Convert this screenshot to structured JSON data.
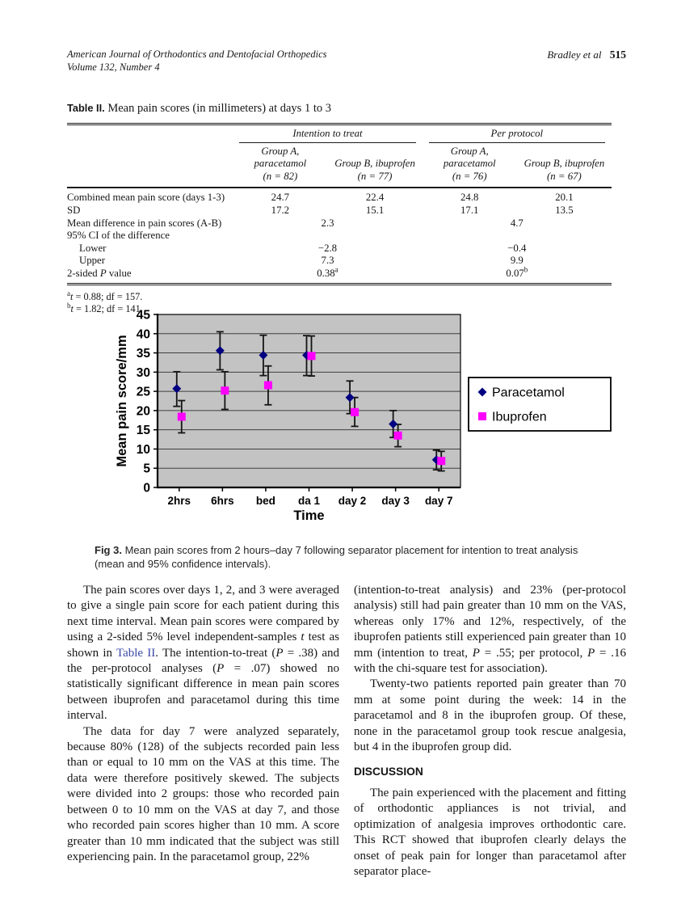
{
  "page_header": {
    "journal": "American Journal of Orthodontics and Dentofacial Orthopedics",
    "volume": "Volume 132, Number 4",
    "running_authors": "Bradley et al",
    "page_number": "515"
  },
  "table": {
    "label": "Table II.",
    "title": "Mean pain scores (in millimeters) at days 1 to 3",
    "group_headers": [
      "Intention to treat",
      "Per protocol"
    ],
    "column_headers": [
      {
        "name": "Group A, paracetamol",
        "n": "(n = 82)"
      },
      {
        "name": "Group B, ibuprofen",
        "n": "(n = 77)"
      },
      {
        "name": "Group A, paracetamol",
        "n": "(n = 76)"
      },
      {
        "name": "Group B, ibuprofen",
        "n": "(n = 67)"
      }
    ],
    "rows": [
      {
        "label": "Combined mean pain score (days 1-3)",
        "span": false,
        "values": [
          "24.7",
          "22.4",
          "24.8",
          "20.1"
        ]
      },
      {
        "label": "SD",
        "span": false,
        "values": [
          "17.2",
          "15.1",
          "17.1",
          "13.5"
        ]
      },
      {
        "label": "Mean difference in pain scores (A-B)",
        "span": true,
        "values": [
          "2.3",
          "4.7"
        ]
      },
      {
        "label": "95% CI of the difference",
        "span": false,
        "values": []
      },
      {
        "label": "Lower",
        "indent": true,
        "span": true,
        "values": [
          "−2.8",
          "−0.4"
        ]
      },
      {
        "label": "Upper",
        "indent": true,
        "span": true,
        "values": [
          "7.3",
          "9.9"
        ]
      },
      {
        "label": "2-sided P value",
        "span": true,
        "values": [
          "0.38",
          "0.07"
        ],
        "sups": [
          "a",
          "b"
        ]
      }
    ],
    "footnotes": [
      {
        "marker": "a",
        "text": "t = 0.88; df = 157."
      },
      {
        "marker": "b",
        "text": "t = 1.82; df = 141."
      }
    ]
  },
  "figure": {
    "label": "Fig 3.",
    "caption": "Mean pain scores from 2 hours–day 7 following separator placement for intention to treat analysis (mean and 95% confidence intervals)."
  },
  "chart_data": {
    "type": "scatter",
    "title": "",
    "xlabel": "Time",
    "ylabel": "Mean pain score/mm",
    "ylim": [
      0,
      45
    ],
    "ytick_step": 5,
    "grid": true,
    "plot_background": "#c3c3c3",
    "legend_position": "right",
    "categories": [
      "2hrs",
      "6hrs",
      "bed",
      "da 1",
      "day 2",
      "day 3",
      "day 7"
    ],
    "series": [
      {
        "name": "Paracetamol",
        "marker": "diamond",
        "color": "#000080",
        "values": [
          25.7,
          35.6,
          34.4,
          34.4,
          23.4,
          16.5,
          7.2
        ],
        "ci_low": [
          21.1,
          30.6,
          29.1,
          29.1,
          19.2,
          13.0,
          4.6
        ],
        "ci_high": [
          30.1,
          40.5,
          39.6,
          39.5,
          27.7,
          20.0,
          9.7
        ]
      },
      {
        "name": "Ibuprofen",
        "marker": "square",
        "color": "#ff00ff",
        "values": [
          18.4,
          25.2,
          26.6,
          34.2,
          19.6,
          13.5,
          6.9
        ],
        "ci_low": [
          14.2,
          20.3,
          21.5,
          29.0,
          15.9,
          10.6,
          4.3
        ],
        "ci_high": [
          22.6,
          30.1,
          31.6,
          39.4,
          23.4,
          16.4,
          9.4
        ]
      }
    ]
  },
  "body": {
    "left_column": [
      {
        "type": "paragraph",
        "segments": [
          {
            "text": "The pain scores over days 1, 2, and 3 were averaged to give a single pain score for each patient during this next time interval. Mean pain scores were compared by using a 2-sided 5% level independent-samples "
          },
          {
            "text": "t",
            "style": "italic"
          },
          {
            "text": " test as shown in "
          },
          {
            "text": "Table II",
            "style": "link"
          },
          {
            "text": ". The intention-to-treat ("
          },
          {
            "text": "P",
            "style": "italic"
          },
          {
            "text": " = .38) and the per-protocol analyses ("
          },
          {
            "text": "P",
            "style": "italic"
          },
          {
            "text": " = .07) showed no statistically significant difference in mean pain scores between ibuprofen and paracetamol during this time interval."
          }
        ]
      },
      {
        "type": "paragraph",
        "segments": [
          {
            "text": "The data for day 7 were analyzed separately, because 80% (128) of the subjects recorded pain less than or equal to 10 mm on the VAS at this time. The data were therefore positively skewed. The subjects were divided into 2 groups: those who recorded pain between 0 to 10 mm on the VAS at day 7, and those who recorded pain scores higher than 10 mm. A score greater than 10 mm indicated that the subject was still experiencing pain. In the paracetamol group, 22%"
          }
        ]
      }
    ],
    "right_column": [
      {
        "type": "paragraph",
        "noindent": true,
        "segments": [
          {
            "text": "(intention-to-treat analysis) and 23% (per-protocol analysis) still had pain greater than 10 mm on the VAS, whereas only 17% and 12%, respectively, of the ibuprofen patients still experienced pain greater than 10 mm (intention to treat, "
          },
          {
            "text": "P",
            "style": "italic"
          },
          {
            "text": " = .55; per protocol, "
          },
          {
            "text": "P",
            "style": "italic"
          },
          {
            "text": " = .16 with the chi-square test for association)."
          }
        ]
      },
      {
        "type": "paragraph",
        "segments": [
          {
            "text": "Twenty-two patients reported pain greater than 70 mm at some point during the week: 14 in the paracetamol and 8 in the ibuprofen group. Of these, none in the paracetamol group took rescue analgesia, but 4 in the ibuprofen group did."
          }
        ]
      },
      {
        "type": "heading",
        "text": "DISCUSSION"
      },
      {
        "type": "paragraph",
        "segments": [
          {
            "text": "The pain experienced with the placement and fitting of orthodontic appliances is not trivial, and optimization of analgesia improves orthodontic care. This RCT showed that ibuprofen clearly delays the onset of peak pain for longer than paracetamol after separator place-"
          }
        ]
      }
    ]
  }
}
